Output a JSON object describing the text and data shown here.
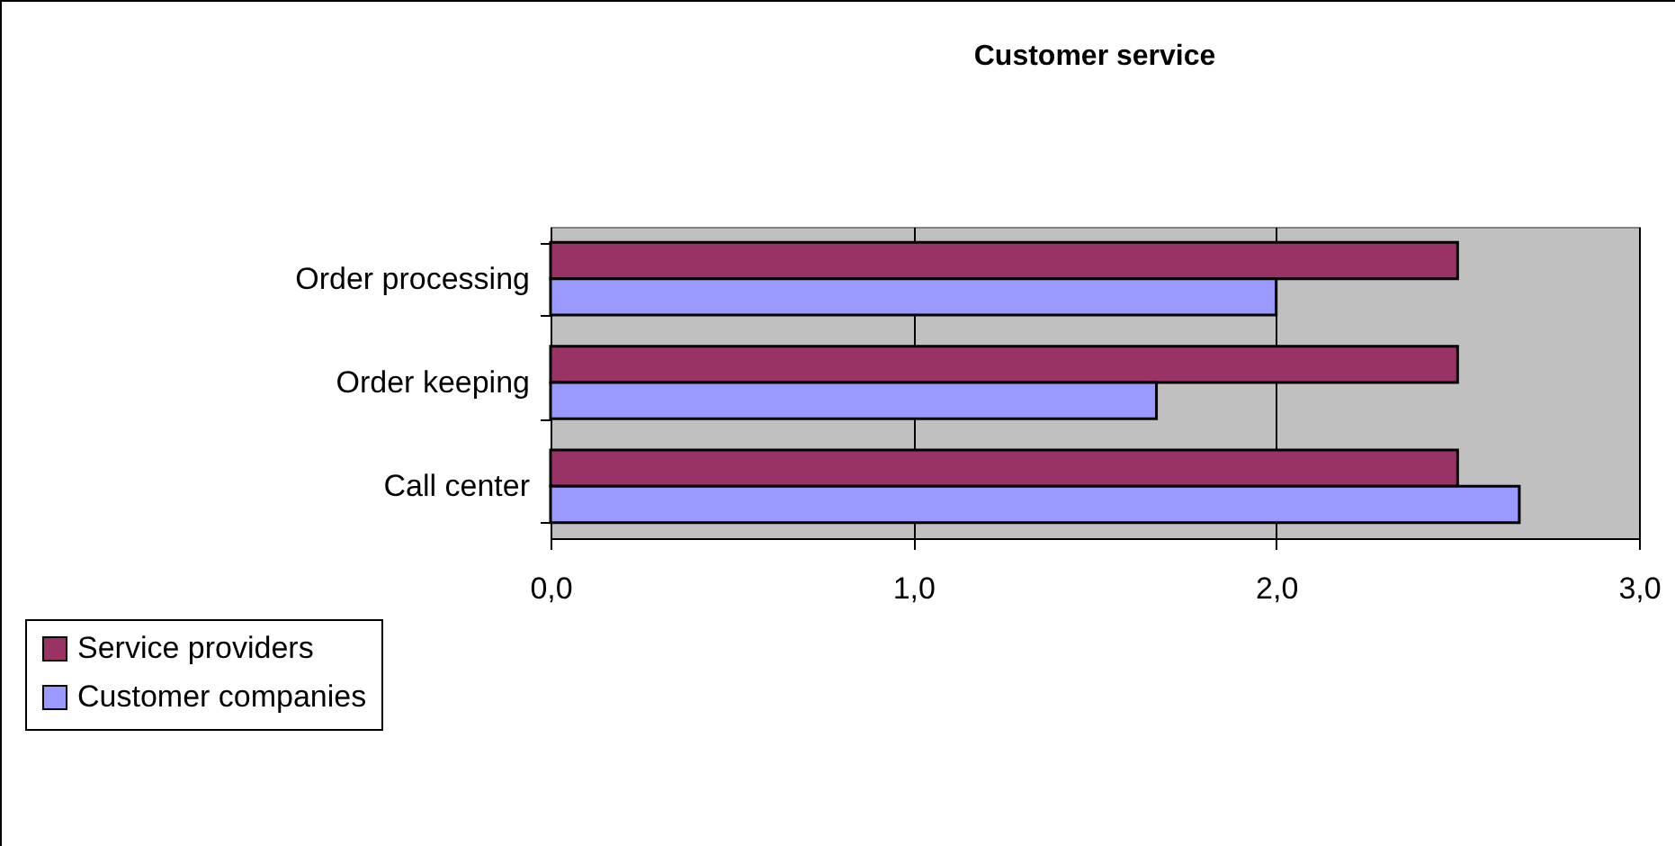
{
  "chart_data": {
    "type": "bar",
    "title": "Customer service",
    "orientation": "horizontal",
    "categories": [
      "Order processing",
      "Order keeping",
      "Call center"
    ],
    "series": [
      {
        "name": "Service providers",
        "color": "#993366",
        "values": [
          2.5,
          2.5,
          2.5
        ]
      },
      {
        "name": "Customer companies",
        "color": "#9999ff",
        "values": [
          2.0,
          1.67,
          2.67
        ]
      }
    ],
    "xlim": [
      0,
      3
    ],
    "xticks": [
      {
        "value": 0,
        "label": "0,0"
      },
      {
        "value": 1,
        "label": "1,0"
      },
      {
        "value": 2,
        "label": "2,0"
      },
      {
        "value": 3,
        "label": "3,0"
      }
    ],
    "grid": "x",
    "legend": "bottom left"
  }
}
